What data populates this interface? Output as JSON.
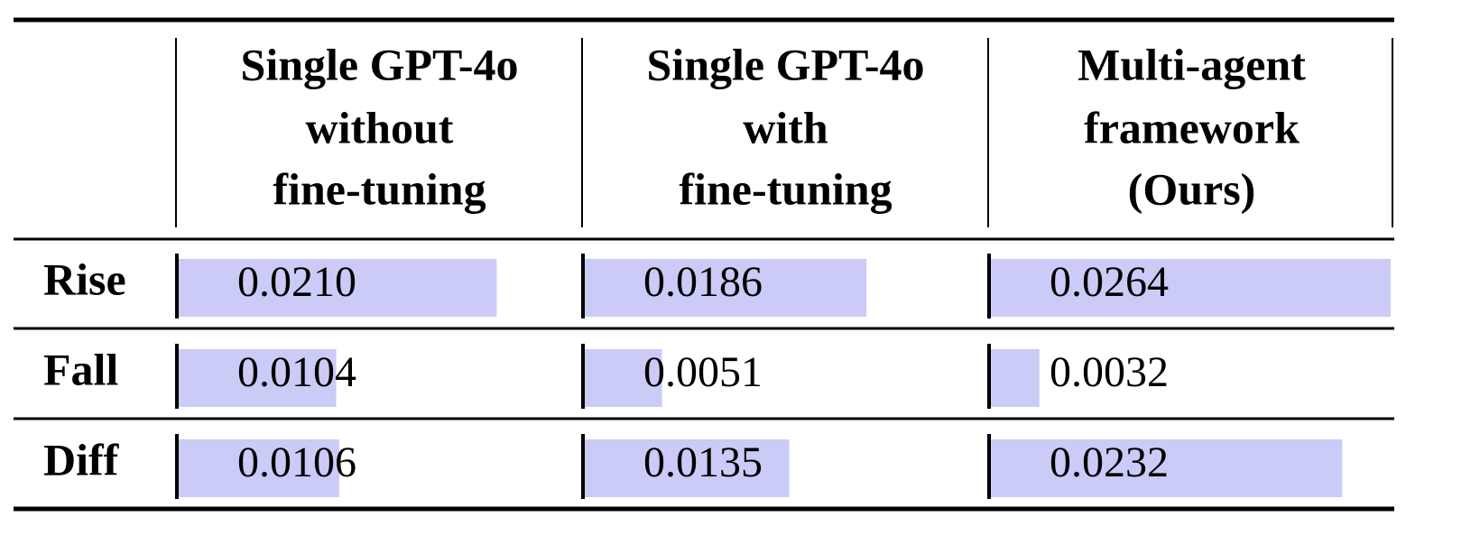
{
  "table": {
    "header": [
      [
        "Single GPT-4o",
        "without",
        "fine-tuning"
      ],
      [
        "Single GPT-4o",
        "with",
        "fine-tuning"
      ],
      [
        "Multi-agent",
        "framework",
        "(Ours)"
      ]
    ],
    "rows": [
      [
        "Rise",
        "0.0210",
        "0.0186",
        "0.0264"
      ],
      [
        "Fall",
        "0.0104",
        "0.0051",
        "0.0032"
      ],
      [
        "Diff",
        "0.0106",
        "0.0135",
        "0.0232"
      ]
    ]
  }
}
